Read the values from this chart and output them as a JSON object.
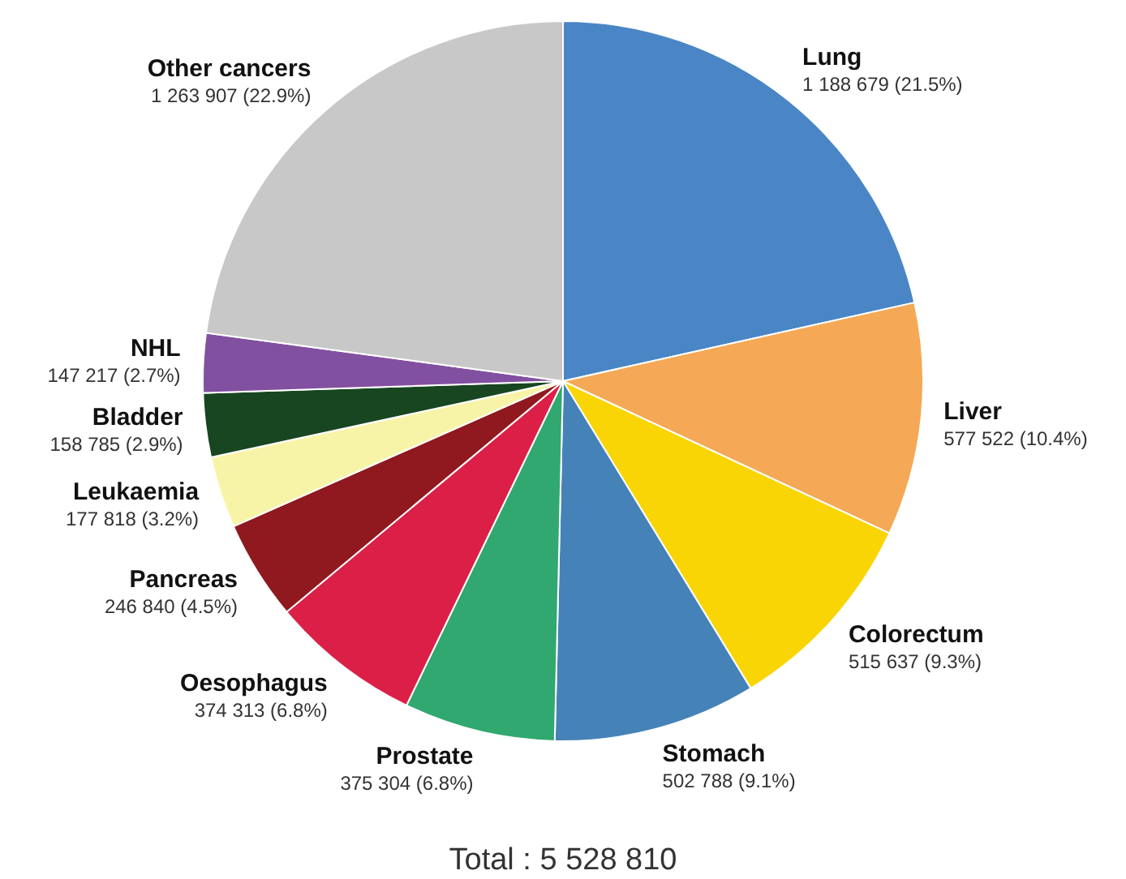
{
  "chart_data": {
    "type": "pie",
    "categories": [
      "Lung",
      "Liver",
      "Colorectum",
      "Stomach",
      "Prostate",
      "Oesophagus",
      "Pancreas",
      "Leukaemia",
      "Bladder",
      "NHL",
      "Other cancers"
    ],
    "values": [
      1188679,
      577522,
      515637,
      502788,
      375304,
      374313,
      246840,
      177818,
      158785,
      147217,
      1263907
    ],
    "colors": [
      "#4a86c5",
      "#f5a855",
      "#fad505",
      "#4582b8",
      "#31a86f",
      "#dc1f47",
      "#8f191e",
      "#f8f4a7",
      "#174620",
      "#8250a0",
      "#c8c8c8"
    ],
    "value_labels": [
      "1 188 679 (21.5%)",
      "577 522 (10.4%)",
      "515 637 (9.3%)",
      "502 788 (9.1%)",
      "375 304 (6.8%)",
      "374 313 (6.8%)",
      "246 840 (4.5%)",
      "177 818 (3.2%)",
      "158 785 (2.9%)",
      "147 217 (2.7%)",
      "1 263 907 (22.9%)"
    ],
    "annotations": [
      "Total : 5 528 810"
    ]
  }
}
